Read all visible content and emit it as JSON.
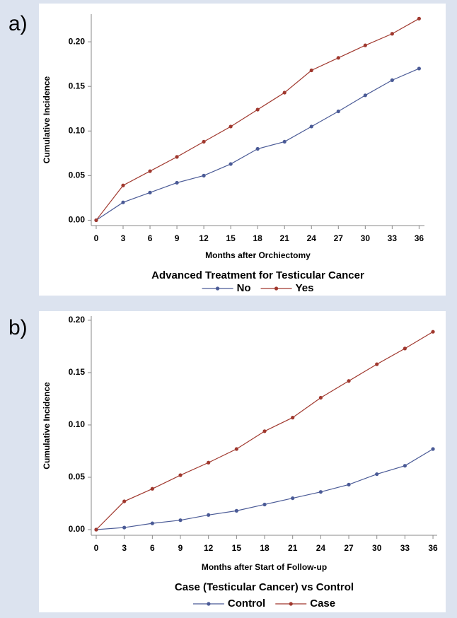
{
  "chart_data": [
    {
      "type": "line",
      "label": "a)",
      "xlabel": "Months after Orchiectomy",
      "ylabel": "Cumulative Incidence",
      "legend_title": "Advanced Treatment for Testicular Cancer",
      "x": [
        0,
        3,
        6,
        9,
        12,
        15,
        18,
        21,
        24,
        27,
        30,
        33,
        36
      ],
      "series": [
        {
          "name": "No",
          "color": "#4a5a96",
          "values": [
            0,
            0.02,
            0.031,
            0.042,
            0.05,
            0.063,
            0.08,
            0.088,
            0.105,
            0.122,
            0.14,
            0.157,
            0.17
          ]
        },
        {
          "name": "Yes",
          "color": "#a0382e",
          "values": [
            0,
            0.039,
            0.055,
            0.071,
            0.088,
            0.105,
            0.124,
            0.143,
            0.168,
            0.182,
            0.196,
            0.209,
            0.226
          ]
        }
      ],
      "xlim": [
        -0.55,
        36.6
      ],
      "ylim": [
        -0.006,
        0.231
      ],
      "xticks": [
        0,
        3,
        6,
        9,
        12,
        15,
        18,
        21,
        24,
        27,
        30,
        33,
        36
      ],
      "yticks": [
        {
          "value": 0,
          "label": "0.00"
        },
        {
          "value": 0.05,
          "label": "0.05"
        },
        {
          "value": 0.1,
          "label": "0.10"
        },
        {
          "value": 0.15,
          "label": "0.15"
        },
        {
          "value": 0.2,
          "label": "0.20"
        }
      ]
    },
    {
      "type": "line",
      "label": "b)",
      "xlabel": "Months after Start of Follow-up",
      "ylabel": "Cumulative Incidence",
      "legend_title": "Case (Testicular Cancer) vs Control",
      "x": [
        0,
        3,
        6,
        9,
        12,
        15,
        18,
        21,
        24,
        27,
        30,
        33,
        36
      ],
      "series": [
        {
          "name": "Control",
          "color": "#4a5a96",
          "values": [
            0,
            0.002,
            0.006,
            0.009,
            0.014,
            0.018,
            0.024,
            0.03,
            0.036,
            0.043,
            0.053,
            0.061,
            0.077
          ]
        },
        {
          "name": "Case",
          "color": "#a0382e",
          "values": [
            0,
            0.027,
            0.039,
            0.052,
            0.064,
            0.077,
            0.094,
            0.107,
            0.126,
            0.142,
            0.158,
            0.173,
            0.189
          ]
        }
      ],
      "xlim": [
        -0.53,
        36.45
      ],
      "ylim": [
        -0.0054,
        0.204
      ],
      "xticks": [
        0,
        3,
        6,
        9,
        12,
        15,
        18,
        21,
        24,
        27,
        30,
        33,
        36
      ],
      "yticks": [
        {
          "value": 0,
          "label": "0.00"
        },
        {
          "value": 0.05,
          "label": "0.05"
        },
        {
          "value": 0.1,
          "label": "0.10"
        },
        {
          "value": 0.15,
          "label": "0.15"
        },
        {
          "value": 0.2,
          "label": "0.20"
        }
      ]
    }
  ]
}
